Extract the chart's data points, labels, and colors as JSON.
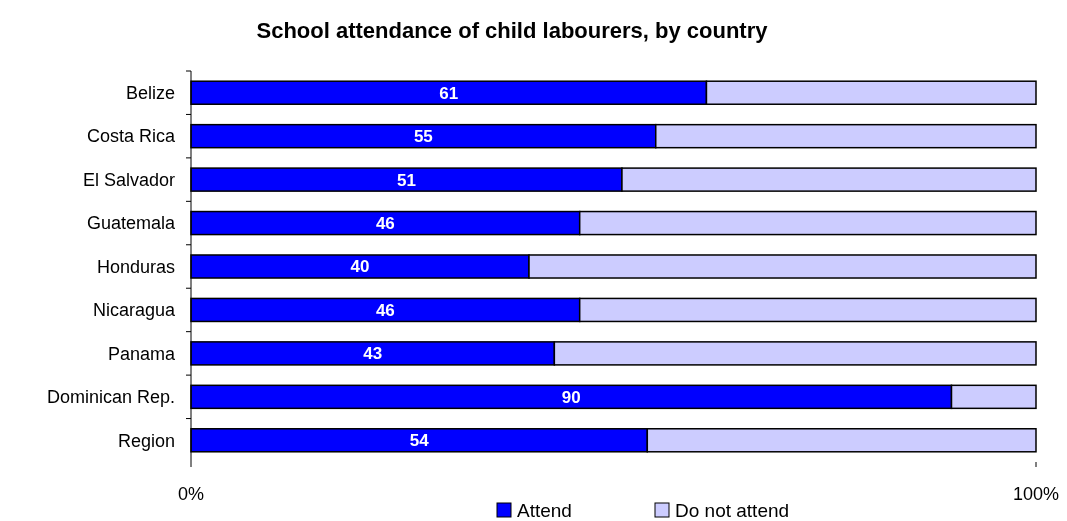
{
  "chart_data": {
    "type": "bar",
    "orientation": "horizontal",
    "stacked": true,
    "title": "School attendance of child labourers, by country",
    "categories": [
      "Belize",
      "Costa Rica",
      "El Salvador",
      "Guatemala",
      "Honduras",
      "Nicaragua",
      "Panama",
      "Dominican Rep.",
      "Region"
    ],
    "series": [
      {
        "name": "Attend",
        "color": "#0000ff",
        "values": [
          61,
          55,
          51,
          46,
          40,
          46,
          43,
          90,
          54
        ],
        "value_labels": [
          "61",
          "55",
          "51",
          "46",
          "40",
          "46",
          "43",
          "90",
          "54"
        ]
      },
      {
        "name": "Do not attend",
        "color": "#ccccff",
        "values": [
          39,
          45,
          49,
          54,
          60,
          54,
          57,
          10,
          46
        ]
      }
    ],
    "xlim": [
      0,
      100
    ],
    "xticks": [
      {
        "value": 0,
        "label": "0%"
      },
      {
        "value": 100,
        "label": "100%"
      }
    ],
    "grid": false,
    "legend": "bottom"
  }
}
